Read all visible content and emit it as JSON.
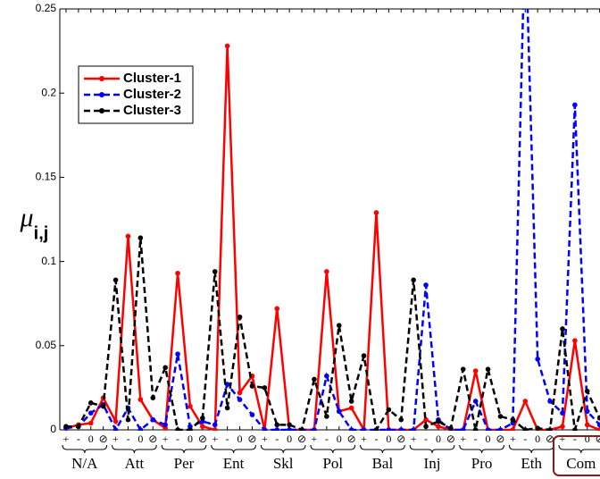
{
  "chart_data": {
    "type": "line",
    "y_label": "μ",
    "y_label_sub": "i,j",
    "categories": [
      "+",
      "-",
      "0",
      "⊘",
      "+",
      "-",
      "0",
      "⊘",
      "+",
      "-",
      "0",
      "⊘",
      "+",
      "-",
      "0",
      "⊘",
      "+",
      "-",
      "0",
      "⊘",
      "+",
      "-",
      "0",
      "⊘",
      "+",
      "-",
      "0",
      "⊘",
      "+",
      "-",
      "0",
      "⊘",
      "+",
      "-",
      "0",
      "⊘",
      "+",
      "-",
      "0",
      "⊘",
      "+",
      "-",
      "0",
      "⊘"
    ],
    "groups": [
      "N/A",
      "Att",
      "Per",
      "Ent",
      "Skl",
      "Pol",
      "Bal",
      "Inj",
      "Pro",
      "Eth",
      "Com"
    ],
    "highlight_group": "Com",
    "ylim": [
      0,
      0.25
    ],
    "yticks": [
      0,
      0.05,
      0.1,
      0.15,
      0.2,
      0.25
    ],
    "legend": "upper left",
    "series": [
      {
        "name": "Cluster-1",
        "color": "#ff0000",
        "dash": "solid",
        "values": [
          0.001,
          0.003,
          0.004,
          0.019,
          0.005,
          0.115,
          0.018,
          0.006,
          0.001,
          0.093,
          0.014,
          0.002,
          0.0,
          0.228,
          0.022,
          0.032,
          0.0,
          0.072,
          0.0,
          0.0,
          0.0,
          0.094,
          0.011,
          0.013,
          0.0,
          0.129,
          0.0,
          0.0,
          0.0,
          0.006,
          0.002,
          0.0,
          0.0,
          0.035,
          0.0,
          0.0,
          0.0,
          0.017,
          0.0,
          0.0,
          0.002,
          0.053,
          0.003,
          0.0
        ]
      },
      {
        "name": "Cluster-2",
        "color": "#0000ff",
        "dash": "dashed",
        "values": [
          0.001,
          0.002,
          0.01,
          0.015,
          0.0,
          0.013,
          0.0,
          0.006,
          0.003,
          0.045,
          0.002,
          0.005,
          0.003,
          0.027,
          0.018,
          0.009,
          0.0,
          0.0,
          0.0,
          0.0,
          0.0,
          0.032,
          0.011,
          0.0,
          0.0,
          0.0,
          0.0,
          0.0,
          0.0,
          0.086,
          0.006,
          0.0,
          0.0,
          0.017,
          0.0,
          0.0,
          0.004,
          0.3,
          0.042,
          0.017,
          0.01,
          0.193,
          0.011,
          0.003
        ]
      },
      {
        "name": "Cluster-3",
        "color": "#000000",
        "dash": "dashed",
        "values": [
          0.002,
          0.002,
          0.016,
          0.014,
          0.089,
          0.006,
          0.114,
          0.019,
          0.037,
          0.0,
          0.0,
          0.007,
          0.094,
          0.013,
          0.067,
          0.026,
          0.025,
          0.003,
          0.003,
          0.0,
          0.03,
          0.008,
          0.062,
          0.017,
          0.044,
          0.0,
          0.012,
          0.006,
          0.089,
          0.002,
          0.005,
          0.001,
          0.036,
          0.0,
          0.036,
          0.008,
          0.006,
          0.0,
          0.001,
          0.0,
          0.06,
          0.0,
          0.023,
          0.007
        ]
      }
    ]
  }
}
